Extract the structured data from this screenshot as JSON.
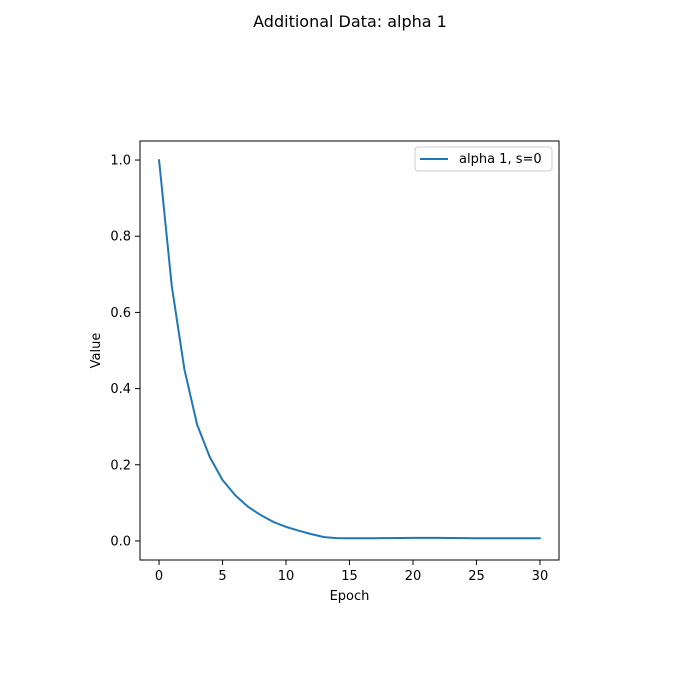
{
  "chart_data": {
    "type": "line",
    "title": "Additional Data: alpha 1",
    "xlabel": "Epoch",
    "ylabel": "Value",
    "xlim": [
      -1.5,
      31.5
    ],
    "ylim": [
      -0.05,
      1.05
    ],
    "xticks": [
      0,
      5,
      10,
      15,
      20,
      25,
      30
    ],
    "yticks": [
      0.0,
      0.2,
      0.4,
      0.6,
      0.8,
      1.0
    ],
    "xtick_labels": [
      "0",
      "5",
      "10",
      "15",
      "20",
      "25",
      "30"
    ],
    "ytick_labels": [
      "0.0",
      "0.2",
      "0.4",
      "0.6",
      "0.8",
      "1.0"
    ],
    "grid": false,
    "legend_position": "top-right",
    "series": [
      {
        "name": "alpha 1, s=0",
        "color": "#1f77b4",
        "x": [
          0,
          1,
          2,
          3,
          4,
          5,
          6,
          7,
          8,
          9,
          10,
          11,
          12,
          13,
          14,
          15,
          16,
          17,
          18,
          19,
          20,
          21,
          22,
          23,
          24,
          25,
          26,
          27,
          28,
          29,
          30
        ],
        "y": [
          1.0,
          0.67,
          0.45,
          0.305,
          0.22,
          0.16,
          0.12,
          0.09,
          0.068,
          0.05,
          0.037,
          0.027,
          0.018,
          0.01,
          0.0075,
          0.007,
          0.007,
          0.0072,
          0.0075,
          0.0078,
          0.008,
          0.008,
          0.008,
          0.0078,
          0.0075,
          0.0072,
          0.007,
          0.007,
          0.007,
          0.007,
          0.007
        ]
      }
    ]
  }
}
